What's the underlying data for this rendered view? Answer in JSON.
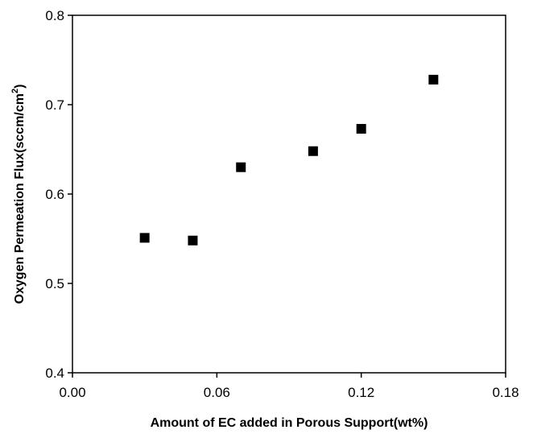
{
  "chart_data": {
    "type": "scatter",
    "title": "",
    "xlabel": "Amount of EC added in Porous Support(wt%)",
    "ylabel": {
      "text": "Oxygen Permeation Flux(sccm/cm",
      "superscript": "2",
      "suffix": ")"
    },
    "xlim": [
      0.0,
      0.18
    ],
    "ylim": [
      0.4,
      0.8
    ],
    "x_ticks": [
      "0.00",
      "0.06",
      "0.12",
      "0.18"
    ],
    "y_ticks": [
      "0.4",
      "0.5",
      "0.6",
      "0.7",
      "0.8"
    ],
    "grid": false,
    "legend": "none",
    "marker": "filled-square",
    "marker_color": "#000000",
    "series": [
      {
        "x": [
          0.03,
          0.05,
          0.07,
          0.1,
          0.12,
          0.15
        ],
        "y": [
          0.551,
          0.548,
          0.63,
          0.648,
          0.673,
          0.728
        ]
      }
    ]
  }
}
